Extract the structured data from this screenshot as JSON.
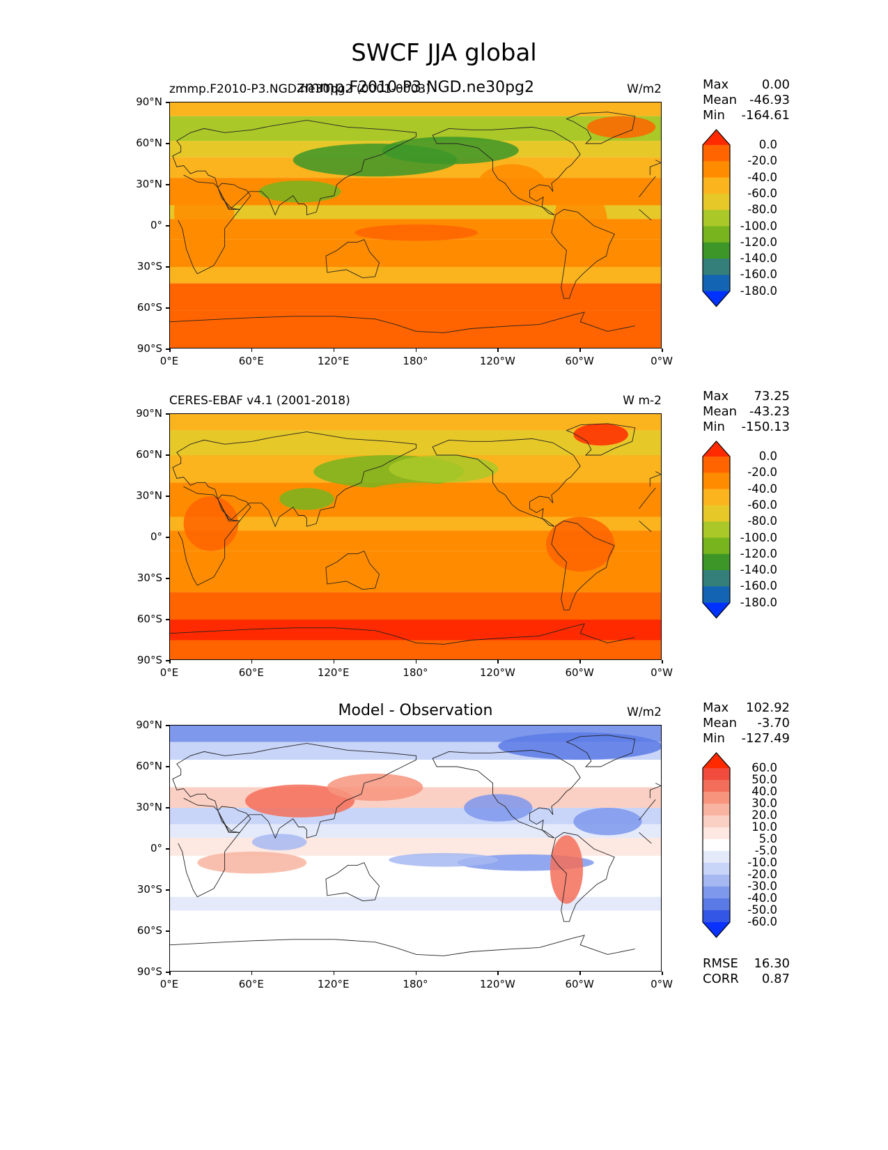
{
  "figure": {
    "title": "SWCF JJA global"
  },
  "axes": {
    "y_ticks": [
      "90°N",
      "60°N",
      "30°N",
      "0°",
      "30°S",
      "60°S",
      "90°S"
    ],
    "x_ticks": [
      "0°E",
      "60°E",
      "120°E",
      "180°",
      "120°W",
      "60°W",
      "0°W"
    ]
  },
  "panels": [
    {
      "id": "model",
      "left_title": "zmmp.F2010-P3.NGD.ne30pg2 (0001-0003)",
      "center_title": "zmmp.F2010-P3.NGD.ne30pg2",
      "units": "W/m2",
      "stats": {
        "max_label": "Max",
        "max": "0.00",
        "mean_label": "Mean",
        "mean": "-46.93",
        "min_label": "Min",
        "min": "-164.61"
      },
      "colorbar_labels": [
        "0.0",
        "-20.0",
        "-40.0",
        "-60.0",
        "-80.0",
        "-100.0",
        "-120.0",
        "-140.0",
        "-160.0",
        "-180.0"
      ]
    },
    {
      "id": "obs",
      "left_title": "CERES-EBAF v4.1 (2001-2018)",
      "center_title": "",
      "units": "W m-2",
      "stats": {
        "max_label": "Max",
        "max": "73.25",
        "mean_label": "Mean",
        "mean": "-43.23",
        "min_label": "Min",
        "min": "-150.13"
      },
      "colorbar_labels": [
        "0.0",
        "-20.0",
        "-40.0",
        "-60.0",
        "-80.0",
        "-100.0",
        "-120.0",
        "-140.0",
        "-160.0",
        "-180.0"
      ]
    },
    {
      "id": "diff",
      "left_title": "",
      "center_title": "Model - Observation",
      "units": "W/m2",
      "stats": {
        "max_label": "Max",
        "max": "102.92",
        "mean_label": "Mean",
        "mean": "-3.70",
        "min_label": "Min",
        "min": "-127.49"
      },
      "colorbar_labels": [
        "60.0",
        "50.0",
        "40.0",
        "30.0",
        "20.0",
        "10.0",
        "5.0",
        "-5.0",
        "-10.0",
        "-20.0",
        "-30.0",
        "-40.0",
        "-50.0",
        "-60.0"
      ],
      "metrics": {
        "rmse_label": "RMSE",
        "rmse": "16.30",
        "corr_label": "CORR",
        "corr": "0.87"
      }
    }
  ],
  "colors": {
    "abs_scale": [
      "#ff2a00",
      "#ff6400",
      "#ff8c00",
      "#fbb41e",
      "#e6c828",
      "#aac828",
      "#78b41e",
      "#3c9628",
      "#347f7a",
      "#1464b4",
      "#0032ff"
    ],
    "diff_scale": [
      "#ff2a00",
      "#f04b3c",
      "#f36e5a",
      "#f6947e",
      "#f8b4a0",
      "#fbd0c4",
      "#fde8e2",
      "#ffffff",
      "#e4eafa",
      "#c8d4f8",
      "#a6b8f2",
      "#7e98ec",
      "#5a7ae6",
      "#3456e6",
      "#0a32ff"
    ]
  }
}
